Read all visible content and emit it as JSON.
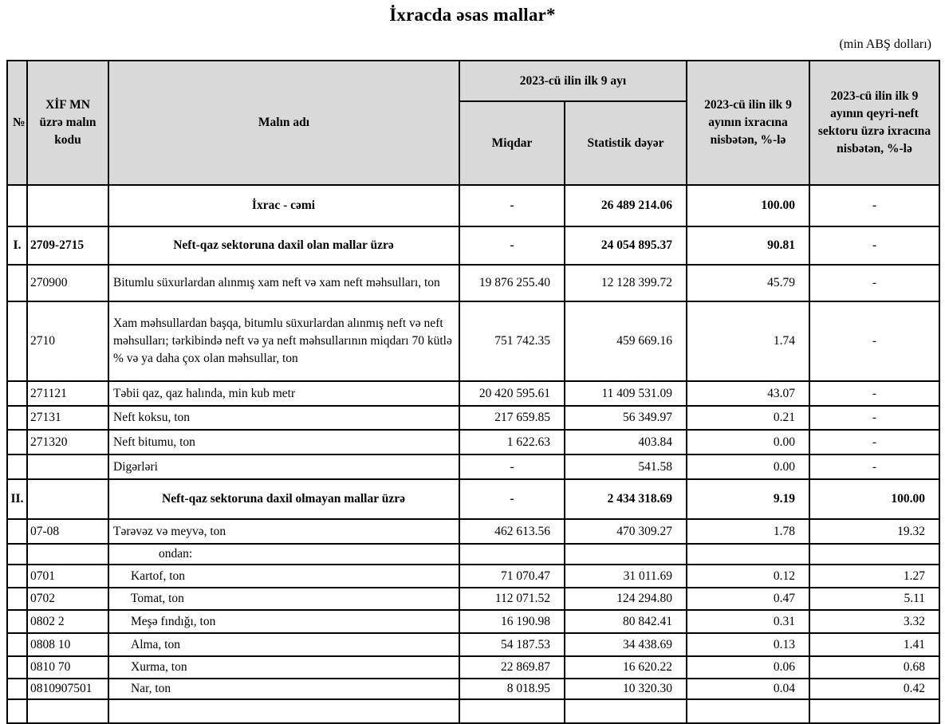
{
  "title": "İxracda əsas mallar*",
  "unit_note": "(min ABŞ dolları)",
  "colors": {
    "header_bg": "#d9d9d9",
    "border": "#000000",
    "text": "#000000",
    "page_bg": "#ffffff"
  },
  "table": {
    "headers": {
      "no": "№",
      "code": "XİF MN üzrə malın kodu",
      "name": "Malın adı",
      "period_group": "2023-cü ilin ilk 9 ayı",
      "quantity": "Miqdar",
      "stat_value": "Statistik dəyər",
      "share_total": "2023-cü ilin ilk 9 ayının ixracına nisbətən, %-lə",
      "share_nonoil": "2023-cü ilin  ilk 9 ayının qeyri-neft sektoru üzrə ixracına nisbətən, %-lə"
    },
    "rows": [
      {
        "style": "total",
        "no": "",
        "code": "",
        "name": "İxrac - cəmi",
        "quantity": "-",
        "stat_value": "26 489 214.06",
        "share_total": "100.00",
        "share_nonoil": "-"
      },
      {
        "style": "section",
        "no": "I.",
        "code": "2709-2715",
        "name": "Neft-qaz sektoruna daxil olan mallar üzrə",
        "quantity": "-",
        "stat_value": "24 054 895.37",
        "share_total": "90.81",
        "share_nonoil": "-"
      },
      {
        "style": "item",
        "no": "",
        "code": "270900",
        "name": "Bitumlu süxurlardan alınmış xam neft və xam neft məhsulları, ton",
        "quantity": "19 876 255.40",
        "stat_value": "12 128 399.72",
        "share_total": "45.79",
        "share_nonoil": "-"
      },
      {
        "style": "item",
        "no": "",
        "code": "2710",
        "name": "Xam məhsullardan başqa, bitumlu süxurlardan alınmış neft və neft məhsulları; tərkibində neft və ya neft məhsullarının miqdarı 70 kütlə % və ya daha çox olan məhsullar, ton",
        "quantity": "751 742.35",
        "stat_value": "459 669.16",
        "share_total": "1.74",
        "share_nonoil": "-"
      },
      {
        "style": "item",
        "no": "",
        "code": "271121",
        "name": "Təbii qaz, qaz halında, min kub metr",
        "quantity": "20 420 595.61",
        "stat_value": "11 409 531.09",
        "share_total": "43.07",
        "share_nonoil": "-"
      },
      {
        "style": "item",
        "no": "",
        "code": "27131",
        "name": "Neft koksu, ton",
        "quantity": "217 659.85",
        "stat_value": "56 349.97",
        "share_total": "0.21",
        "share_nonoil": "-"
      },
      {
        "style": "item",
        "no": "",
        "code": "271320",
        "name": "Neft bitumu, ton",
        "quantity": "1 622.63",
        "stat_value": "403.84",
        "share_total": "0.00",
        "share_nonoil": "-"
      },
      {
        "style": "item",
        "no": "",
        "code": "",
        "name": "Digərləri",
        "quantity": "-",
        "stat_value": "541.58",
        "share_total": "0.00",
        "share_nonoil": "-"
      },
      {
        "style": "section",
        "no": "II.",
        "code": "",
        "name": "Neft-qaz sektoruna daxil olmayan mallar üzrə",
        "quantity": "-",
        "stat_value": "2 434 318.69",
        "share_total": "9.19",
        "share_nonoil": "100.00"
      },
      {
        "style": "item",
        "no": "",
        "code": "07-08",
        "name": "Tərəvəz və meyvə, ton",
        "quantity": "462 613.56",
        "stat_value": "470 309.27",
        "share_total": "1.78",
        "share_nonoil": "19.32"
      },
      {
        "style": "subhead",
        "no": "",
        "code": "",
        "name": "ondan:",
        "quantity": "",
        "stat_value": "",
        "share_total": "",
        "share_nonoil": ""
      },
      {
        "style": "subitem",
        "no": "",
        "code": "0701",
        "name": "Kartof, ton",
        "quantity": "71 070.47",
        "stat_value": "31 011.69",
        "share_total": "0.12",
        "share_nonoil": "1.27"
      },
      {
        "style": "subitem",
        "no": "",
        "code": "0702",
        "name": "Tomat, ton",
        "quantity": "112 071.52",
        "stat_value": "124 294.80",
        "share_total": "0.47",
        "share_nonoil": "5.11"
      },
      {
        "style": "subitem",
        "no": "",
        "code": "0802 2",
        "name": "Meşə fındığı, ton",
        "quantity": "16 190.98",
        "stat_value": "80 842.41",
        "share_total": "0.31",
        "share_nonoil": "3.32"
      },
      {
        "style": "subitem",
        "no": "",
        "code": "0808 10",
        "name": "Alma, ton",
        "quantity": "54 187.53",
        "stat_value": "34 438.69",
        "share_total": "0.13",
        "share_nonoil": "1.41"
      },
      {
        "style": "subitem",
        "no": "",
        "code": "0810 70",
        "name": "Xurma, ton",
        "quantity": "22 869.87",
        "stat_value": "16 620.22",
        "share_total": "0.06",
        "share_nonoil": "0.68"
      },
      {
        "style": "subitem",
        "no": "",
        "code": "0810907501",
        "name": "Nar, ton",
        "quantity": "8 018.95",
        "stat_value": "10 320.30",
        "share_total": "0.04",
        "share_nonoil": "0.42"
      },
      {
        "style": "empty",
        "no": "",
        "code": "",
        "name": "",
        "quantity": "",
        "stat_value": "",
        "share_total": "",
        "share_nonoil": ""
      }
    ]
  }
}
